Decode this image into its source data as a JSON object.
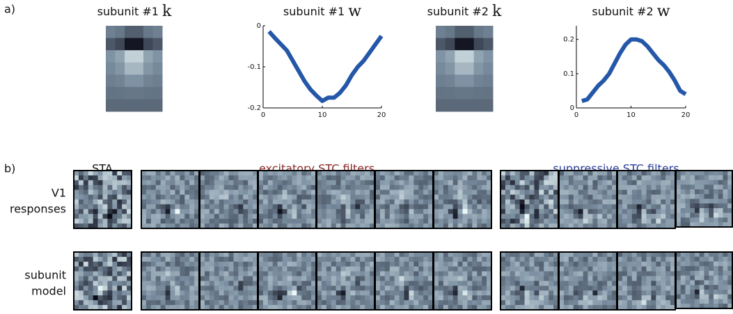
{
  "panel_labels": {
    "a": "a)",
    "b": "b)"
  },
  "k_images": [
    {
      "title": "subunit #1",
      "symbol": "k"
    },
    {
      "title": "subunit #2",
      "symbol": "k"
    }
  ],
  "chart_data": [
    {
      "type": "line",
      "title": "subunit #1",
      "title_symbol": "w",
      "x": [
        1,
        2,
        3,
        4,
        5,
        6,
        7,
        8,
        9,
        10,
        11,
        12,
        13,
        14,
        15,
        16,
        17,
        18,
        19,
        20
      ],
      "series": [
        {
          "color": "#2457a8",
          "values": [
            -0.014,
            -0.03,
            -0.045,
            -0.06,
            -0.085,
            -0.11,
            -0.135,
            -0.155,
            -0.17,
            -0.183,
            -0.175,
            -0.175,
            -0.163,
            -0.145,
            -0.12,
            -0.1,
            -0.085,
            -0.065,
            -0.045,
            -0.025
          ]
        }
      ],
      "xlim": [
        0,
        20
      ],
      "ylim": [
        -0.2,
        0
      ],
      "xticks": [
        0,
        10,
        20
      ],
      "yticks": [
        -0.2,
        -0.1,
        0
      ]
    },
    {
      "type": "line",
      "title": "subunit #2",
      "title_symbol": "w",
      "x": [
        1,
        2,
        3,
        4,
        5,
        6,
        7,
        8,
        9,
        10,
        11,
        12,
        13,
        14,
        15,
        16,
        17,
        18,
        19,
        20
      ],
      "series": [
        {
          "color": "#2457a8",
          "values": [
            0.02,
            0.025,
            0.045,
            0.065,
            0.08,
            0.1,
            0.13,
            0.16,
            0.185,
            0.2,
            0.2,
            0.195,
            0.18,
            0.16,
            0.14,
            0.125,
            0.105,
            0.08,
            0.05,
            0.04
          ]
        }
      ],
      "xlim": [
        0,
        20
      ],
      "ylim": [
        0,
        0.24
      ],
      "xticks": [
        0,
        10,
        20
      ],
      "yticks": [
        0,
        0.1,
        0.2
      ]
    }
  ],
  "panel_b": {
    "sta": "STA",
    "excitatory": "excitatory STC filters",
    "suppressive": "suppressive STC filters",
    "rows": [
      [
        "V1",
        "responses"
      ],
      [
        "subunit",
        "model"
      ]
    ]
  }
}
